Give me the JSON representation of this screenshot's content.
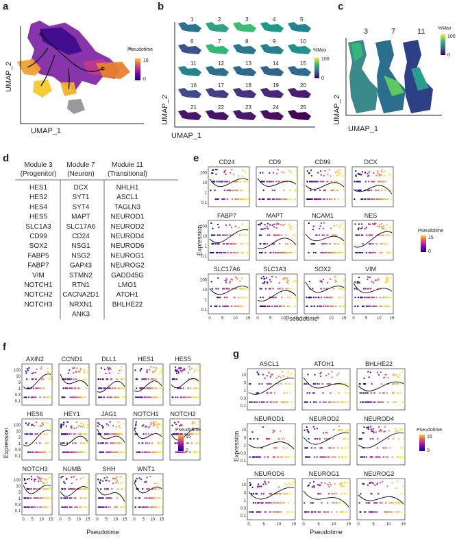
{
  "panels": {
    "a": {
      "letter": "a",
      "legend_title": "Pseudotime",
      "legend_max": "16",
      "legend_min": "0",
      "xlabel": "UMAP_1",
      "ylabel": "UMAP_2"
    },
    "b": {
      "letter": "b",
      "numbers": [
        "1",
        "2",
        "3",
        "4",
        "5",
        "6",
        "7",
        "8",
        "9",
        "10",
        "11",
        "12",
        "13",
        "14",
        "15",
        "16",
        "17",
        "18",
        "19",
        "20",
        "21",
        "22",
        "23",
        "24",
        "25"
      ],
      "legend_title": "%Max",
      "legend_max": "100",
      "legend_min": "0",
      "xlabel": "UMAP_1",
      "ylabel": "UMAP_2"
    },
    "c": {
      "letter": "c",
      "numbers": [
        "3",
        "7",
        "11"
      ],
      "legend_title": "%Max",
      "legend_max": "100",
      "legend_min": "0",
      "xlabel": "UMAP_1",
      "ylabel": "UMAP_2"
    },
    "d": {
      "letter": "d",
      "columns": [
        {
          "title": "Module 3",
          "subtitle": "(Progenitor)",
          "genes": [
            "HES1",
            "HES2",
            "HES4",
            "HES5",
            "SLC1A3",
            "CD99",
            "SOX2",
            "FABP5",
            "FABP7",
            "VIM",
            "NOTCH1",
            "NOTCH2",
            "NOTCH3"
          ]
        },
        {
          "title": "Module 7",
          "subtitle": "(Neuron)",
          "genes": [
            "DCX",
            "SYT1",
            "SYT4",
            "MAPT",
            "SLC17A6",
            "CD24",
            "NSG1",
            "NSG2",
            "GAP43",
            "STMN2",
            "RTN1",
            "CACNA2D1",
            "NRXN1",
            "ANK3"
          ]
        },
        {
          "title": "Module 11",
          "subtitle": "(Transitional)",
          "genes": [
            "NHLH1",
            "ASCL1",
            "TAGLN3",
            "NEUROD1",
            "NEUROD2",
            "NEUROD4",
            "NEUROD6",
            "NEUROG1",
            "NEUROG2",
            "GADD45G",
            "LMO1",
            "ATOH1",
            "BHLHE22"
          ]
        }
      ]
    },
    "e": {
      "letter": "e",
      "genes": [
        "CD24",
        "CD9",
        "CD99",
        "DCX",
        "FABP7",
        "MAPT",
        "NCAM1",
        "NES",
        "SLC17A6",
        "SLC1A3",
        "SOX2",
        "VIM"
      ],
      "ylabel": "Expression",
      "xlabel": "Pseudotime",
      "legend_title": "Pseudotime",
      "legend_max": "15",
      "legend_min": "0",
      "yticks": [
        "100",
        "10",
        "1",
        "0.1"
      ],
      "xticks": [
        "0",
        "5",
        "10",
        "15"
      ]
    },
    "f": {
      "letter": "f",
      "genes": [
        "AXIN2",
        "CCND1",
        "DLL1",
        "HES1",
        "HES5",
        "HES6",
        "HEY1",
        "JAG1",
        "NOTCH1",
        "NOTCH2",
        "NOTCH3",
        "NUMB",
        "SHH",
        "WNT1"
      ],
      "ylabel": "Expression",
      "xlabel": "Pseudotime",
      "legend_title": "Pseudotime",
      "legend_max": "15",
      "legend_min": "0",
      "yticks": [
        "100",
        "10",
        "3",
        "1",
        "0.3",
        "0.1"
      ],
      "xticks": [
        "0",
        "5",
        "10",
        "15"
      ]
    },
    "g": {
      "letter": "g",
      "genes": [
        "ASCL1",
        "ATOH1",
        "BHLHE22",
        "NEUROD1",
        "NEUROD2",
        "NEUROD4",
        "NEUROD6",
        "NEUROG1",
        "NEUROG2"
      ],
      "ylabel": "Expression",
      "xlabel": "Pseudotime",
      "legend_title": "Pseudotime",
      "legend_max": "15",
      "legend_min": "0",
      "yticks": [
        "10",
        "3",
        "1",
        "0.3",
        "0.1"
      ],
      "xticks": [
        "0",
        "5",
        "10",
        "15"
      ]
    }
  }
}
